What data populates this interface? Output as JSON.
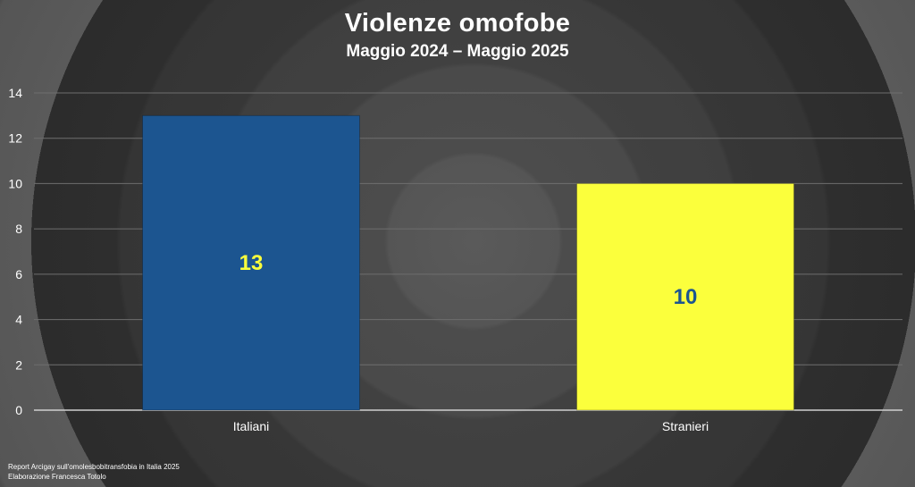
{
  "chart_data": {
    "type": "bar",
    "title": "Violenze omofobe",
    "subtitle": "Maggio 2024 – Maggio 2025",
    "categories": [
      "Italiani",
      "Stranieri"
    ],
    "values": [
      13,
      10
    ],
    "data_labels": [
      "13",
      "10"
    ],
    "bar_colors": [
      "#1c5590",
      "#fbff3c"
    ],
    "label_colors": [
      "#fbff3c",
      "#1c5590"
    ],
    "ylim": [
      0,
      14
    ],
    "yticks": [
      0,
      2,
      4,
      6,
      8,
      10,
      12,
      14
    ],
    "grid": true,
    "xlabel": "",
    "ylabel": ""
  },
  "footer": {
    "source": "Report Arcigay sull'omolesbobitransfobia in Italia 2025",
    "credit": "Elaborazione Francesca Totolo"
  }
}
